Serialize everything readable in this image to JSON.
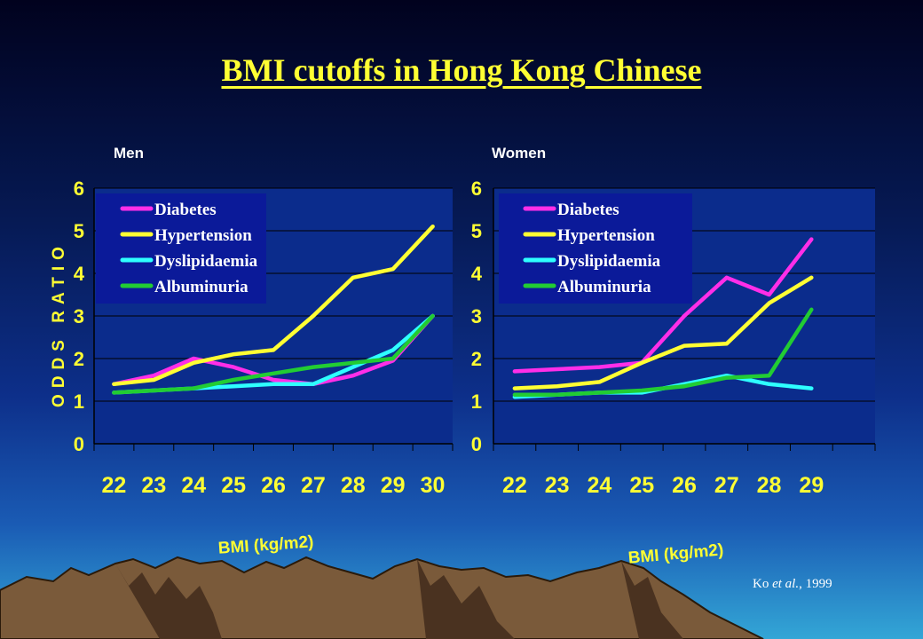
{
  "title": "BMI cutoffs in Hong Kong Chinese",
  "citation": {
    "author": "Ko",
    "etal": "et al.",
    "year": ", 1999"
  },
  "colors": {
    "background_top": "#01021e",
    "background_bottom": "#33a6d6",
    "plot_bg": "#0b2c8c",
    "legend_bg": "#0b1a99",
    "text_accent": "#ffff33",
    "Diabetes": "#ff2ee8",
    "Hypertension": "#ffff33",
    "Dyslipidaemia": "#2effff",
    "Albuminuria": "#22cc33"
  },
  "chart_data": [
    {
      "type": "line",
      "panel_label": "Men",
      "xlabel": "BMI (kg/m2)",
      "ylabel": "ODDS RATIO",
      "x": [
        "22",
        "23",
        "24",
        "25",
        "26",
        "27",
        "28",
        "29",
        "30"
      ],
      "ylim": [
        0,
        6
      ],
      "yticks": [
        "0",
        "1",
        "2",
        "3",
        "4",
        "5",
        "6"
      ],
      "grid": true,
      "legend": "top-left",
      "series": [
        {
          "name": "Diabetes",
          "values": [
            1.4,
            1.6,
            2.0,
            1.8,
            1.5,
            1.4,
            1.6,
            1.95,
            3.0
          ]
        },
        {
          "name": "Hypertension",
          "values": [
            1.4,
            1.5,
            1.9,
            2.1,
            2.2,
            3.0,
            3.9,
            4.1,
            5.1
          ]
        },
        {
          "name": "Dyslipidaemia",
          "values": [
            1.2,
            1.25,
            1.3,
            1.35,
            1.4,
            1.4,
            1.8,
            2.2,
            3.0
          ]
        },
        {
          "name": "Albuminuria",
          "values": [
            1.2,
            1.25,
            1.3,
            1.5,
            1.65,
            1.8,
            1.9,
            2.0,
            3.0
          ]
        }
      ]
    },
    {
      "type": "line",
      "panel_label": "Women",
      "xlabel": "BMI (kg/m2)",
      "ylabel": "",
      "x": [
        "22",
        "23",
        "24",
        "25",
        "26",
        "27",
        "28",
        "29"
      ],
      "ylim": [
        0,
        6
      ],
      "yticks": [
        "0",
        "1",
        "2",
        "3",
        "4",
        "5",
        "6"
      ],
      "grid": true,
      "legend": "top-left",
      "series": [
        {
          "name": "Diabetes",
          "values": [
            1.7,
            1.75,
            1.8,
            1.9,
            3.0,
            3.9,
            3.5,
            4.8
          ]
        },
        {
          "name": "Hypertension",
          "values": [
            1.3,
            1.35,
            1.45,
            1.9,
            2.3,
            2.35,
            3.3,
            3.9
          ]
        },
        {
          "name": "Dyslipidaemia",
          "values": [
            1.1,
            1.15,
            1.2,
            1.2,
            1.4,
            1.6,
            1.4,
            1.3
          ]
        },
        {
          "name": "Albuminuria",
          "values": [
            1.15,
            1.15,
            1.2,
            1.25,
            1.35,
            1.55,
            1.6,
            3.15
          ]
        }
      ]
    }
  ]
}
